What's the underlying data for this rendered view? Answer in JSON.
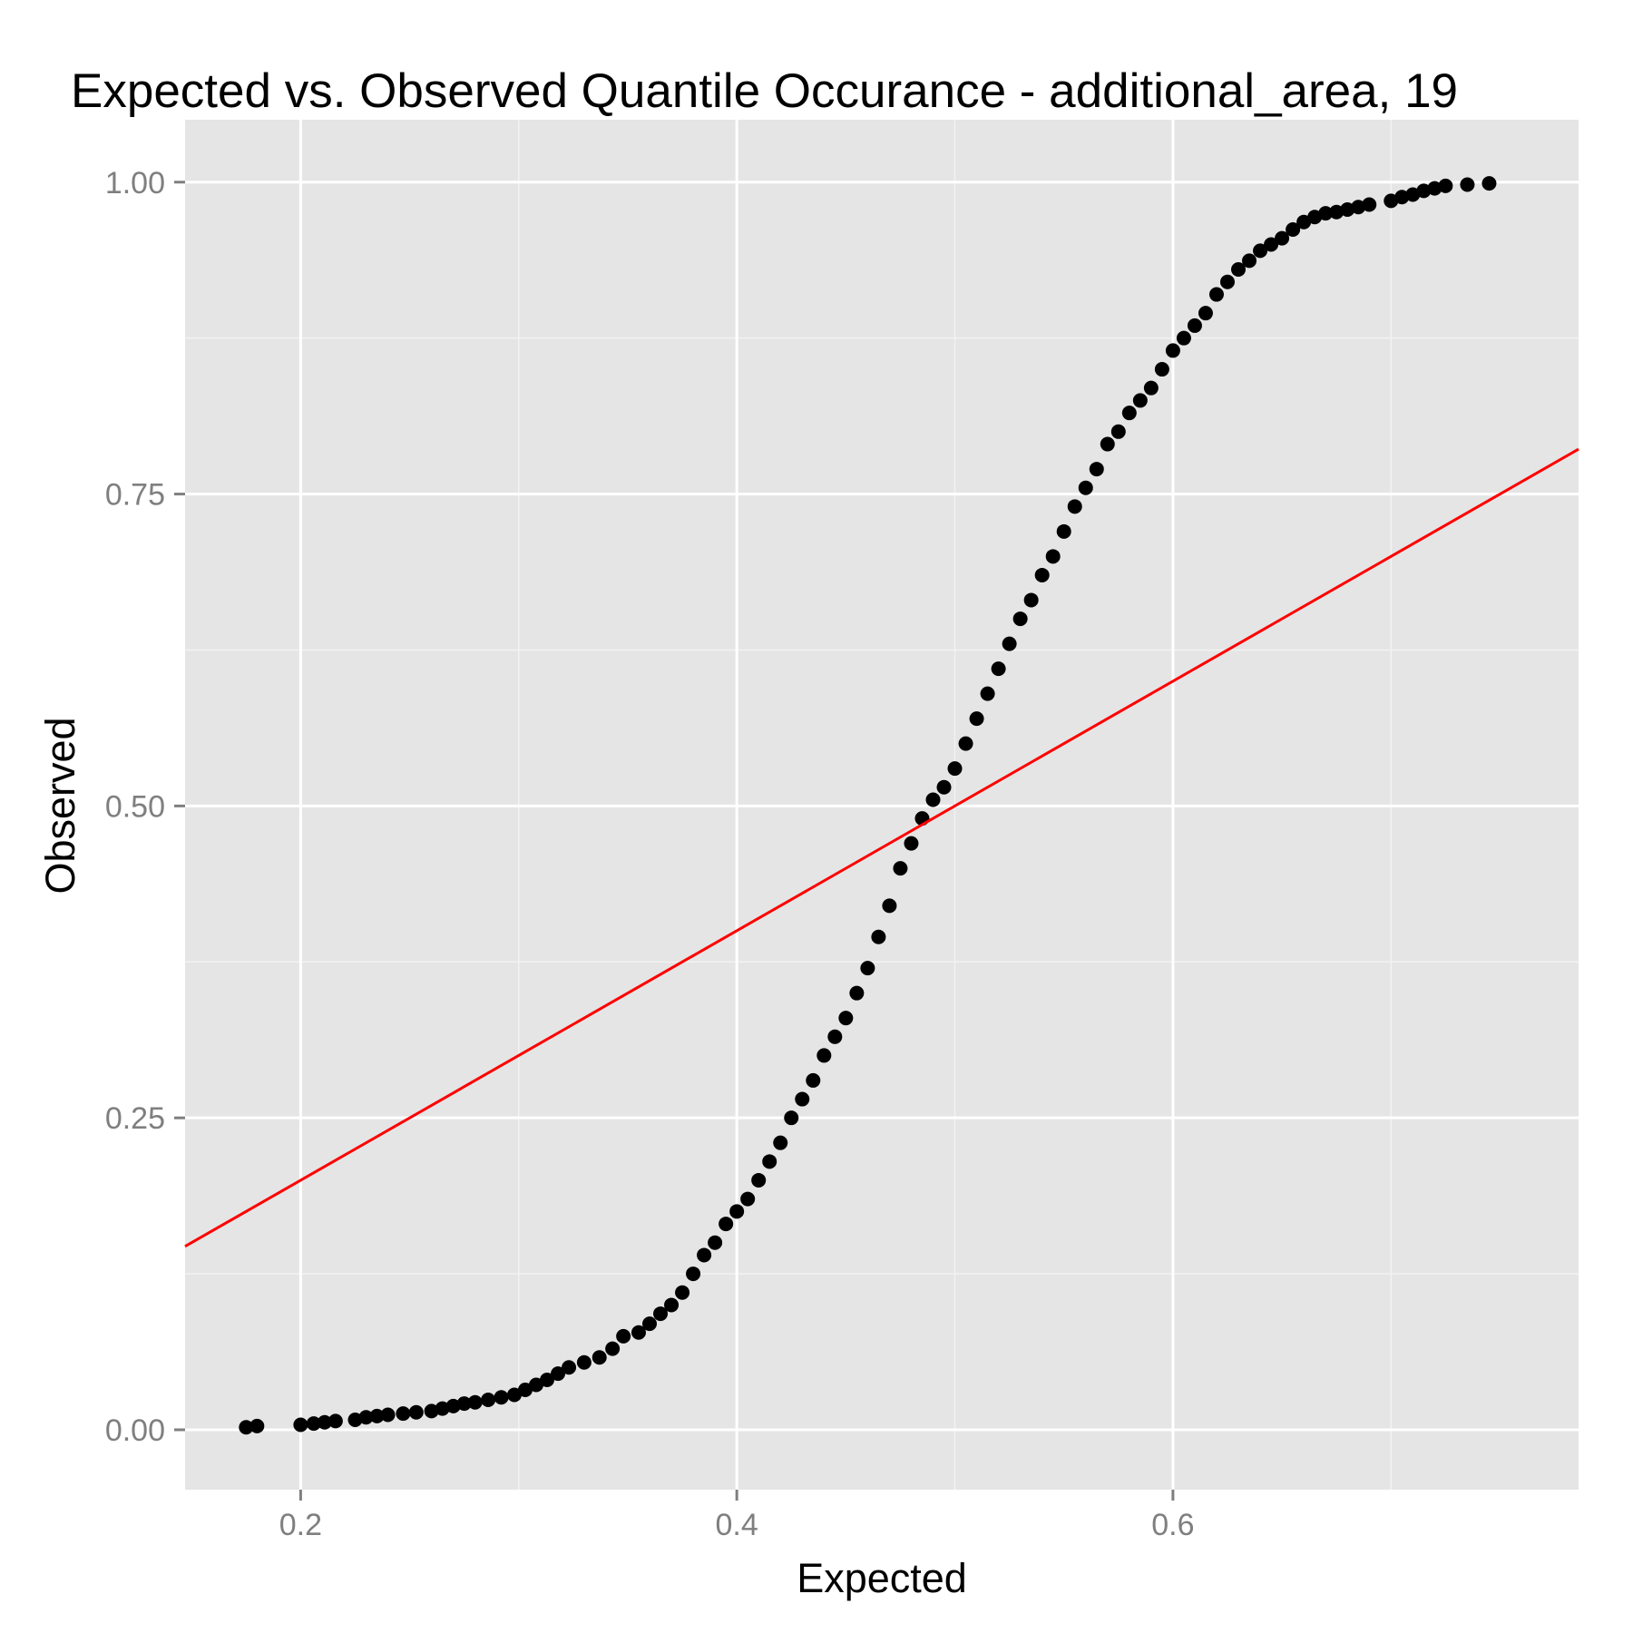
{
  "chart_data": {
    "type": "scatter",
    "title": "Expected vs. Observed Quantile Occurance - additional_area, 19",
    "xlabel": "Expected",
    "ylabel": "Observed",
    "xlim": [
      0.147,
      0.786
    ],
    "ylim": [
      -0.048,
      1.05
    ],
    "x_ticks": [
      0.2,
      0.4,
      0.6
    ],
    "x_tick_labels": [
      "0.2",
      "0.4",
      "0.6"
    ],
    "y_ticks": [
      0.0,
      0.25,
      0.5,
      0.75,
      1.0
    ],
    "y_tick_labels": [
      "0.00",
      "0.25",
      "0.50",
      "0.75",
      "1.00"
    ],
    "grid": true,
    "background": "#e5e5e5",
    "point_color": "#000000",
    "reference_line": {
      "slope": 1,
      "intercept": 0,
      "color": "#ff0000"
    },
    "series": [
      {
        "points": [
          [
            0.175,
            0.002
          ],
          [
            0.18,
            0.003
          ],
          [
            0.2,
            0.004
          ],
          [
            0.206,
            0.005
          ],
          [
            0.211,
            0.006
          ],
          [
            0.216,
            0.007
          ],
          [
            0.225,
            0.008
          ],
          [
            0.23,
            0.01
          ],
          [
            0.235,
            0.011
          ],
          [
            0.24,
            0.012
          ],
          [
            0.247,
            0.013
          ],
          [
            0.253,
            0.014
          ],
          [
            0.26,
            0.015
          ],
          [
            0.265,
            0.017
          ],
          [
            0.27,
            0.019
          ],
          [
            0.275,
            0.021
          ],
          [
            0.28,
            0.022
          ],
          [
            0.286,
            0.024
          ],
          [
            0.292,
            0.026
          ],
          [
            0.298,
            0.028
          ],
          [
            0.303,
            0.032
          ],
          [
            0.308,
            0.036
          ],
          [
            0.313,
            0.04
          ],
          [
            0.318,
            0.045
          ],
          [
            0.323,
            0.05
          ],
          [
            0.33,
            0.054
          ],
          [
            0.337,
            0.058
          ],
          [
            0.343,
            0.065
          ],
          [
            0.348,
            0.075
          ],
          [
            0.355,
            0.078
          ],
          [
            0.36,
            0.085
          ],
          [
            0.365,
            0.093
          ],
          [
            0.37,
            0.1
          ],
          [
            0.375,
            0.11
          ],
          [
            0.38,
            0.125
          ],
          [
            0.385,
            0.14
          ],
          [
            0.39,
            0.15
          ],
          [
            0.395,
            0.165
          ],
          [
            0.4,
            0.175
          ],
          [
            0.405,
            0.185
          ],
          [
            0.41,
            0.2
          ],
          [
            0.415,
            0.215
          ],
          [
            0.42,
            0.23
          ],
          [
            0.425,
            0.25
          ],
          [
            0.43,
            0.265
          ],
          [
            0.435,
            0.28
          ],
          [
            0.44,
            0.3
          ],
          [
            0.445,
            0.315
          ],
          [
            0.45,
            0.33
          ],
          [
            0.455,
            0.35
          ],
          [
            0.46,
            0.37
          ],
          [
            0.465,
            0.395
          ],
          [
            0.47,
            0.42
          ],
          [
            0.475,
            0.45
          ],
          [
            0.48,
            0.47
          ],
          [
            0.485,
            0.49
          ],
          [
            0.49,
            0.505
          ],
          [
            0.495,
            0.515
          ],
          [
            0.5,
            0.53
          ],
          [
            0.505,
            0.55
          ],
          [
            0.51,
            0.57
          ],
          [
            0.515,
            0.59
          ],
          [
            0.52,
            0.61
          ],
          [
            0.525,
            0.63
          ],
          [
            0.53,
            0.65
          ],
          [
            0.535,
            0.665
          ],
          [
            0.54,
            0.685
          ],
          [
            0.545,
            0.7
          ],
          [
            0.55,
            0.72
          ],
          [
            0.555,
            0.74
          ],
          [
            0.56,
            0.755
          ],
          [
            0.565,
            0.77
          ],
          [
            0.57,
            0.79
          ],
          [
            0.575,
            0.8
          ],
          [
            0.58,
            0.815
          ],
          [
            0.585,
            0.825
          ],
          [
            0.59,
            0.835
          ],
          [
            0.595,
            0.85
          ],
          [
            0.6,
            0.865
          ],
          [
            0.605,
            0.875
          ],
          [
            0.61,
            0.885
          ],
          [
            0.615,
            0.895
          ],
          [
            0.62,
            0.91
          ],
          [
            0.625,
            0.92
          ],
          [
            0.63,
            0.93
          ],
          [
            0.635,
            0.937
          ],
          [
            0.64,
            0.945
          ],
          [
            0.645,
            0.95
          ],
          [
            0.65,
            0.955
          ],
          [
            0.655,
            0.962
          ],
          [
            0.66,
            0.968
          ],
          [
            0.665,
            0.972
          ],
          [
            0.67,
            0.975
          ],
          [
            0.675,
            0.976
          ],
          [
            0.68,
            0.978
          ],
          [
            0.685,
            0.98
          ],
          [
            0.69,
            0.982
          ],
          [
            0.7,
            0.985
          ],
          [
            0.705,
            0.988
          ],
          [
            0.71,
            0.99
          ],
          [
            0.715,
            0.993
          ],
          [
            0.72,
            0.995
          ],
          [
            0.725,
            0.997
          ],
          [
            0.735,
            0.998
          ],
          [
            0.745,
            0.999
          ]
        ]
      }
    ]
  }
}
